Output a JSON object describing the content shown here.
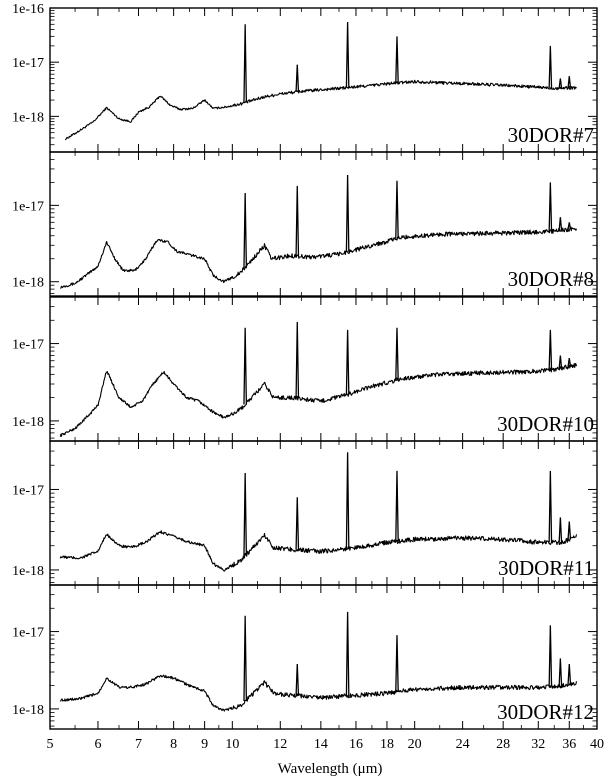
{
  "figure": {
    "xlabel": "Wavelength (μm)"
  },
  "chart_data": [
    {
      "type": "line",
      "label": "30DOR#7",
      "xscale": "log",
      "yscale": "log",
      "xlim": [
        5,
        40
      ],
      "ylim": [
        2.2e-19,
        1e-16
      ],
      "xticks": [
        "5",
        "6",
        "7",
        "8",
        "9",
        "10",
        "12",
        "14",
        "16",
        "18",
        "20",
        "24",
        "28",
        "32",
        "36",
        "40"
      ],
      "yticks": [
        "1e-18",
        "1e-17",
        "1e-16"
      ],
      "continuum": [
        [
          5.3,
          3.8e-19
        ],
        [
          5.6,
          5.5e-19
        ],
        [
          5.9,
          8e-19
        ],
        [
          6.2,
          1.45e-18
        ],
        [
          6.5,
          9e-19
        ],
        [
          6.8,
          8e-19
        ],
        [
          7.0,
          1.2e-18
        ],
        [
          7.3,
          1.5e-18
        ],
        [
          7.6,
          2.4e-18
        ],
        [
          7.9,
          1.6e-18
        ],
        [
          8.2,
          1.35e-18
        ],
        [
          8.6,
          1.4e-18
        ],
        [
          9.0,
          2e-18
        ],
        [
          9.3,
          1.4e-18
        ],
        [
          9.8,
          1.5e-18
        ],
        [
          10.3,
          1.7e-18
        ],
        [
          11.0,
          2.1e-18
        ],
        [
          11.3,
          2.3e-18
        ],
        [
          12,
          2.6e-18
        ],
        [
          13,
          2.9e-18
        ],
        [
          14,
          3.1e-18
        ],
        [
          16,
          3.5e-18
        ],
        [
          18,
          4e-18
        ],
        [
          20,
          4.4e-18
        ],
        [
          22,
          4.2e-18
        ],
        [
          26,
          3.9e-18
        ],
        [
          30,
          3.6e-18
        ],
        [
          34,
          3.3e-18
        ],
        [
          37,
          3.4e-18
        ]
      ],
      "lines": [
        [
          10.5,
          5e-17
        ],
        [
          12.8,
          9e-18
        ],
        [
          15.5,
          5.5e-17
        ],
        [
          18.7,
          3e-17
        ],
        [
          33.5,
          2e-17
        ],
        [
          34.8,
          5e-18
        ],
        [
          36.0,
          5.5e-18
        ]
      ],
      "noise": 0.04
    },
    {
      "type": "line",
      "label": "30DOR#8",
      "xscale": "log",
      "yscale": "log",
      "xlim": [
        5,
        40
      ],
      "ylim": [
        6.5e-19,
        5e-17
      ],
      "xticks": [
        "5",
        "6",
        "7",
        "8",
        "9",
        "10",
        "12",
        "14",
        "16",
        "18",
        "20",
        "24",
        "28",
        "32",
        "36",
        "40"
      ],
      "yticks": [
        "1e-18",
        "1e-17"
      ],
      "continuum": [
        [
          5.2,
          8.5e-19
        ],
        [
          5.5,
          9.5e-19
        ],
        [
          5.8,
          1.3e-18
        ],
        [
          6.0,
          1.6e-18
        ],
        [
          6.2,
          3.3e-18
        ],
        [
          6.4,
          2e-18
        ],
        [
          6.6,
          1.4e-18
        ],
        [
          6.9,
          1.4e-18
        ],
        [
          7.2,
          2e-18
        ],
        [
          7.5,
          3.5e-18
        ],
        [
          7.8,
          3.4e-18
        ],
        [
          8.1,
          2.5e-18
        ],
        [
          8.6,
          2.2e-18
        ],
        [
          9.0,
          2e-18
        ],
        [
          9.3,
          1.2e-18
        ],
        [
          9.7,
          1e-18
        ],
        [
          10.3,
          1.3e-18
        ],
        [
          11.3,
          3e-18
        ],
        [
          11.6,
          2e-18
        ],
        [
          12.5,
          2.2e-18
        ],
        [
          13.5,
          2.1e-18
        ],
        [
          15,
          2.3e-18
        ],
        [
          17,
          3e-18
        ],
        [
          19,
          3.8e-18
        ],
        [
          22,
          4.2e-18
        ],
        [
          26,
          4.3e-18
        ],
        [
          30,
          4.4e-18
        ],
        [
          34,
          4.6e-18
        ],
        [
          37,
          5e-18
        ]
      ],
      "lines": [
        [
          10.5,
          1.45e-17
        ],
        [
          12.8,
          1.8e-17
        ],
        [
          15.5,
          2.5e-17
        ],
        [
          18.7,
          2.1e-17
        ],
        [
          33.5,
          2e-17
        ],
        [
          34.8,
          7e-18
        ],
        [
          36.0,
          6e-18
        ]
      ],
      "noise": 0.04
    },
    {
      "type": "line",
      "label": "30DOR#10",
      "xscale": "log",
      "yscale": "log",
      "xlim": [
        5,
        40
      ],
      "ylim": [
        5.5e-19,
        4e-17
      ],
      "xticks": [
        "5",
        "6",
        "7",
        "8",
        "9",
        "10",
        "12",
        "14",
        "16",
        "18",
        "20",
        "24",
        "28",
        "32",
        "36",
        "40"
      ],
      "yticks": [
        "1e-18",
        "1e-17"
      ],
      "continuum": [
        [
          5.2,
          6.5e-19
        ],
        [
          5.5,
          8e-19
        ],
        [
          5.8,
          1.2e-18
        ],
        [
          6.0,
          1.6e-18
        ],
        [
          6.2,
          4.5e-18
        ],
        [
          6.5,
          2e-18
        ],
        [
          6.8,
          1.5e-18
        ],
        [
          7.1,
          1.8e-18
        ],
        [
          7.4,
          3e-18
        ],
        [
          7.7,
          4.3e-18
        ],
        [
          8.0,
          3e-18
        ],
        [
          8.4,
          2e-18
        ],
        [
          8.8,
          1.8e-18
        ],
        [
          9.3,
          1.3e-18
        ],
        [
          9.7,
          1.1e-18
        ],
        [
          10.3,
          1.4e-18
        ],
        [
          11.3,
          3e-18
        ],
        [
          11.7,
          2e-18
        ],
        [
          12.5,
          2e-18
        ],
        [
          14,
          1.8e-18
        ],
        [
          15.5,
          2.2e-18
        ],
        [
          17,
          2.8e-18
        ],
        [
          19,
          3.5e-18
        ],
        [
          22,
          4e-18
        ],
        [
          26,
          4.2e-18
        ],
        [
          30,
          4.3e-18
        ],
        [
          34,
          4.6e-18
        ],
        [
          37,
          5.3e-18
        ]
      ],
      "lines": [
        [
          10.5,
          1.6e-17
        ],
        [
          12.8,
          1.9e-17
        ],
        [
          15.5,
          1.5e-17
        ],
        [
          18.7,
          1.6e-17
        ],
        [
          33.5,
          1.5e-17
        ],
        [
          34.8,
          7e-18
        ],
        [
          36.0,
          6.5e-18
        ]
      ],
      "noise": 0.04
    },
    {
      "type": "line",
      "label": "30DOR#11",
      "xscale": "log",
      "yscale": "log",
      "xlim": [
        5,
        40
      ],
      "ylim": [
        6.5e-19,
        4e-17
      ],
      "xticks": [
        "5",
        "6",
        "7",
        "8",
        "9",
        "10",
        "12",
        "14",
        "16",
        "18",
        "20",
        "24",
        "28",
        "32",
        "36",
        "40"
      ],
      "yticks": [
        "1e-18",
        "1e-17"
      ],
      "continuum": [
        [
          5.2,
          1.45e-18
        ],
        [
          5.6,
          1.4e-18
        ],
        [
          6.0,
          1.7e-18
        ],
        [
          6.2,
          2.8e-18
        ],
        [
          6.5,
          2e-18
        ],
        [
          6.8,
          1.9e-18
        ],
        [
          7.2,
          2.2e-18
        ],
        [
          7.6,
          3e-18
        ],
        [
          8.0,
          2.6e-18
        ],
        [
          8.5,
          2.2e-18
        ],
        [
          9.0,
          2e-18
        ],
        [
          9.3,
          1.2e-18
        ],
        [
          9.7,
          1e-18
        ],
        [
          10.3,
          1.3e-18
        ],
        [
          11.3,
          2.7e-18
        ],
        [
          11.7,
          1.9e-18
        ],
        [
          12.5,
          1.8e-18
        ],
        [
          14,
          1.7e-18
        ],
        [
          16,
          1.9e-18
        ],
        [
          18,
          2.2e-18
        ],
        [
          20,
          2.4e-18
        ],
        [
          24,
          2.5e-18
        ],
        [
          28,
          2.4e-18
        ],
        [
          32,
          2.2e-18
        ],
        [
          35,
          2.2e-18
        ],
        [
          37,
          2.6e-18
        ]
      ],
      "lines": [
        [
          10.5,
          1.6e-17
        ],
        [
          12.8,
          8e-18
        ],
        [
          15.5,
          2.9e-17
        ],
        [
          18.7,
          1.7e-17
        ],
        [
          33.5,
          1.7e-17
        ],
        [
          34.8,
          4.5e-18
        ],
        [
          36.0,
          4e-18
        ]
      ],
      "noise": 0.04
    },
    {
      "type": "line",
      "label": "30DOR#12",
      "xscale": "log",
      "yscale": "log",
      "xlim": [
        5,
        40
      ],
      "ylim": [
        5.5e-19,
        4e-17
      ],
      "xticks": [
        "5",
        "6",
        "7",
        "8",
        "9",
        "10",
        "12",
        "14",
        "16",
        "18",
        "20",
        "24",
        "28",
        "32",
        "36",
        "40"
      ],
      "yticks": [
        "1e-18",
        "1e-17"
      ],
      "continuum": [
        [
          5.2,
          1.3e-18
        ],
        [
          5.6,
          1.35e-18
        ],
        [
          6.0,
          1.6e-18
        ],
        [
          6.2,
          2.5e-18
        ],
        [
          6.5,
          1.9e-18
        ],
        [
          6.8,
          1.9e-18
        ],
        [
          7.2,
          2.1e-18
        ],
        [
          7.6,
          2.7e-18
        ],
        [
          8.0,
          2.5e-18
        ],
        [
          8.5,
          2e-18
        ],
        [
          9.0,
          1.7e-18
        ],
        [
          9.3,
          1.1e-18
        ],
        [
          9.7,
          9.5e-19
        ],
        [
          10.3,
          1.1e-18
        ],
        [
          11.3,
          2.2e-18
        ],
        [
          11.7,
          1.6e-18
        ],
        [
          12.5,
          1.5e-18
        ],
        [
          14,
          1.4e-18
        ],
        [
          16,
          1.5e-18
        ],
        [
          18,
          1.6e-18
        ],
        [
          20,
          1.8e-18
        ],
        [
          24,
          1.9e-18
        ],
        [
          28,
          1.9e-18
        ],
        [
          32,
          1.9e-18
        ],
        [
          35,
          2e-18
        ],
        [
          37,
          2.2e-18
        ]
      ],
      "lines": [
        [
          10.5,
          1.6e-17
        ],
        [
          12.8,
          3.8e-18
        ],
        [
          15.5,
          1.8e-17
        ],
        [
          18.7,
          9e-18
        ],
        [
          33.5,
          1.2e-17
        ],
        [
          34.8,
          4.5e-18
        ],
        [
          36.0,
          3.8e-18
        ]
      ],
      "noise": 0.04
    }
  ]
}
